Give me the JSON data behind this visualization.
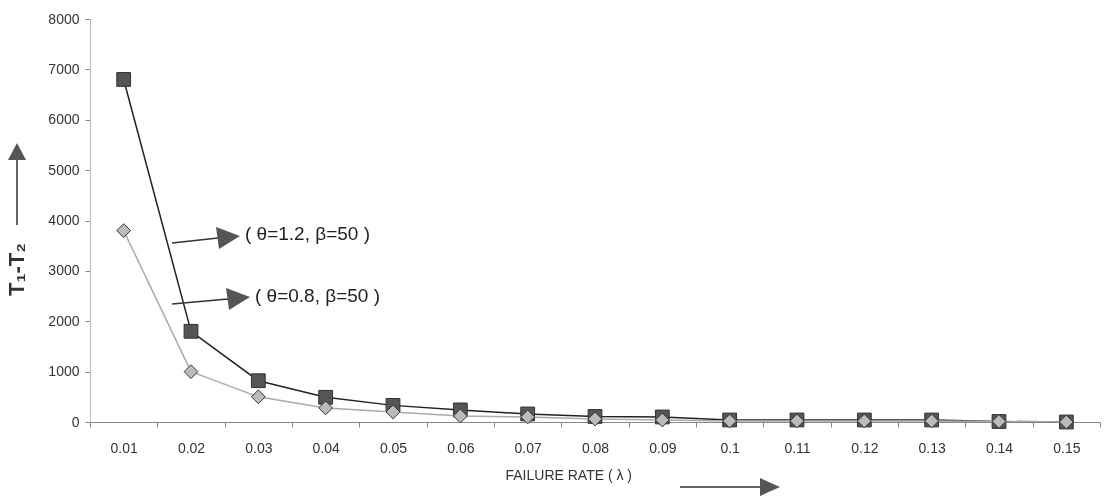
{
  "chart_data": {
    "type": "line",
    "xlabel": "FAILURE RATE ( λ )",
    "ylabel": "T₁-T₂",
    "categories": [
      "0.01",
      "0.02",
      "0.03",
      "0.04",
      "0.05",
      "0.06",
      "0.07",
      "0.08",
      "0.09",
      "0.1",
      "0.11",
      "0.12",
      "0.13",
      "0.14",
      "0.15"
    ],
    "ylim": [
      0,
      8000
    ],
    "legend": "left",
    "yticks": [
      0,
      1000,
      2000,
      3000,
      4000,
      5000,
      6000,
      7000,
      8000
    ],
    "series": [
      {
        "name": "( θ=1.2, β=50 )",
        "color": "#555555",
        "marker": "square",
        "values": [
          6800,
          1800,
          820,
          490,
          330,
          240,
          160,
          110,
          100,
          40,
          40,
          40,
          40,
          10,
          0
        ]
      },
      {
        "name": "( θ=0.8, β=50 )",
        "color": "#bbbbbb",
        "marker": "diamond",
        "values": [
          3800,
          1000,
          500,
          280,
          200,
          120,
          100,
          60,
          40,
          20,
          20,
          20,
          20,
          10,
          0
        ]
      }
    ]
  }
}
